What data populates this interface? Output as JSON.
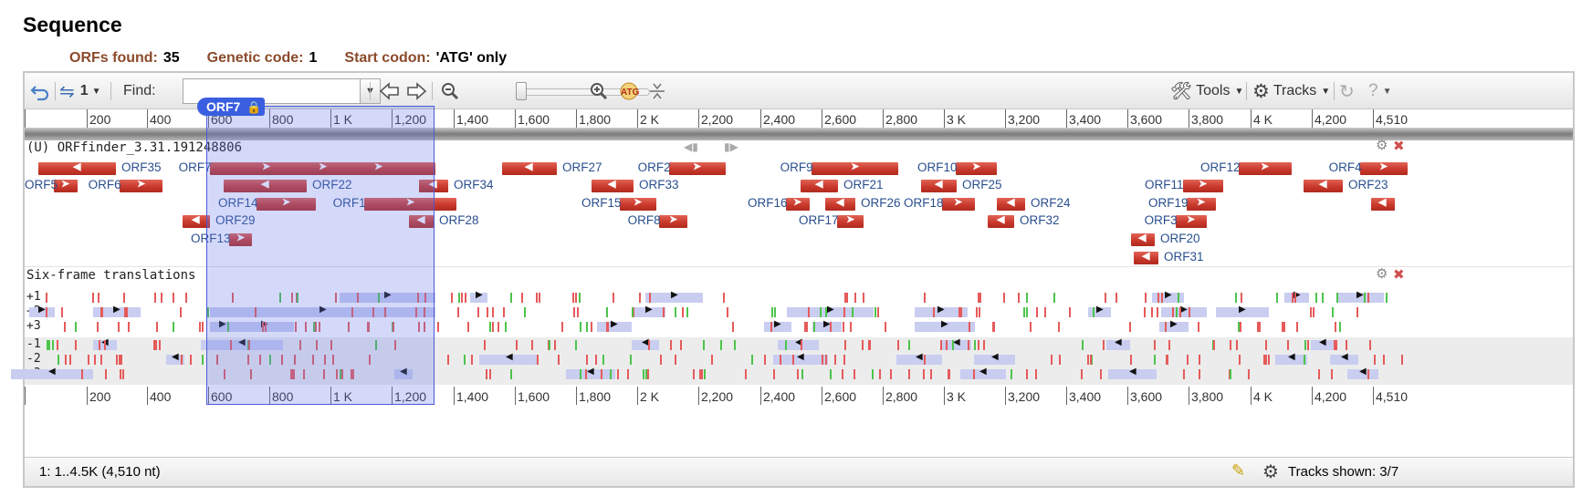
{
  "page": {
    "title": "Sequence"
  },
  "summary": {
    "orfs_label": "ORFs found:",
    "orfs_value": "35",
    "code_label": "Genetic code:",
    "code_value": "1",
    "start_label": "Start codon:",
    "start_value": "'ATG' only"
  },
  "toolbar": {
    "frames_value": "1",
    "find_label": "Find:",
    "find_value": "",
    "tools_label": "Tools",
    "tracks_label": "Tracks"
  },
  "ruler": {
    "labels": [
      "200",
      "400",
      "600",
      "800",
      "1 K",
      "1,200",
      "1,400",
      "1,600",
      "1,800",
      "2 K",
      "2,200",
      "2,400",
      "2,600",
      "2,800",
      "3 K",
      "3,200",
      "3,400",
      "3,600",
      "3,800",
      "4 K",
      "4,200",
      "4,510"
    ]
  },
  "selection": {
    "label": "ORF7"
  },
  "orf_track": {
    "title": "(U) ORFfinder_3.31.191248806"
  },
  "translation_track": {
    "title": "Six-frame translations",
    "frames": [
      "+1",
      "+2",
      "+3",
      "-1",
      "-2",
      "-3"
    ]
  },
  "orfs": [
    {
      "name": "ORF35",
      "row": 0,
      "start": 40,
      "end": 125,
      "dir": "-",
      "label_side": "right"
    },
    {
      "name": "ORF7",
      "row": 0,
      "start": 228,
      "end": 475,
      "dir": "+",
      "label_side": "left"
    },
    {
      "name": "ORF27",
      "row": 0,
      "start": 548,
      "end": 608,
      "dir": "-",
      "label_side": "right"
    },
    {
      "name": "ORF2",
      "row": 0,
      "start": 731,
      "end": 793,
      "dir": "+",
      "label_side": "left"
    },
    {
      "name": "ORF9",
      "row": 0,
      "start": 887,
      "end": 982,
      "dir": "+",
      "label_side": "left"
    },
    {
      "name": "ORF10",
      "row": 0,
      "start": 1045,
      "end": 1090,
      "dir": "+",
      "label_side": "left"
    },
    {
      "name": "ORF12",
      "row": 0,
      "start": 1355,
      "end": 1413,
      "dir": "+",
      "label_side": "left"
    },
    {
      "name": "ORF4",
      "row": 0,
      "start": 1488,
      "end": 1540,
      "dir": "+",
      "label_side": "left"
    },
    {
      "name": "ORF5",
      "row": 1,
      "start": 57,
      "end": 83,
      "dir": "+",
      "label_side": "left"
    },
    {
      "name": "ORF6",
      "row": 1,
      "start": 129,
      "end": 176,
      "dir": "+",
      "label_side": "left"
    },
    {
      "name": "ORF22",
      "row": 1,
      "start": 243,
      "end": 334,
      "dir": "-",
      "label_side": "right"
    },
    {
      "name": "ORF34",
      "row": 1,
      "start": 457,
      "end": 489,
      "dir": "-",
      "label_side": "right"
    },
    {
      "name": "ORF33",
      "row": 1,
      "start": 646,
      "end": 692,
      "dir": "-",
      "label_side": "right"
    },
    {
      "name": "ORF21",
      "row": 1,
      "start": 875,
      "end": 916,
      "dir": "-",
      "label_side": "right"
    },
    {
      "name": "ORF25",
      "row": 1,
      "start": 1007,
      "end": 1046,
      "dir": "-",
      "label_side": "right"
    },
    {
      "name": "ORF11",
      "row": 1,
      "start": 1294,
      "end": 1338,
      "dir": "+",
      "label_side": "left"
    },
    {
      "name": "ORF23",
      "row": 1,
      "start": 1426,
      "end": 1469,
      "dir": "-",
      "label_side": "right"
    },
    {
      "name": "ORF14",
      "row": 2,
      "start": 279,
      "end": 344,
      "dir": "+",
      "label_side": "left"
    },
    {
      "name": "ORF1",
      "row": 2,
      "start": 397,
      "end": 498,
      "dir": "+",
      "label_side": "left"
    },
    {
      "name": "ORF15",
      "row": 2,
      "start": 677,
      "end": 717,
      "dir": "+",
      "label_side": "left"
    },
    {
      "name": "ORF16",
      "row": 2,
      "start": 859,
      "end": 885,
      "dir": "+",
      "label_side": "left"
    },
    {
      "name": "ORF26",
      "row": 2,
      "start": 902,
      "end": 935,
      "dir": "-",
      "label_side": "right"
    },
    {
      "name": "ORF18",
      "row": 2,
      "start": 1030,
      "end": 1066,
      "dir": "+",
      "label_side": "left"
    },
    {
      "name": "ORF24",
      "row": 2,
      "start": 1090,
      "end": 1121,
      "dir": "-",
      "label_side": "right"
    },
    {
      "name": "ORF19",
      "row": 2,
      "start": 1298,
      "end": 1330,
      "dir": "+",
      "label_side": "left"
    },
    {
      "name": "",
      "row": 2,
      "start": 1500,
      "end": 1526,
      "dir": "-",
      "label_side": "right"
    },
    {
      "name": "ORF29",
      "row": 3,
      "start": 198,
      "end": 228,
      "dir": "-",
      "label_side": "right"
    },
    {
      "name": "ORF28",
      "row": 3,
      "start": 446,
      "end": 473,
      "dir": "-",
      "label_side": "right"
    },
    {
      "name": "ORF8",
      "row": 3,
      "start": 720,
      "end": 751,
      "dir": "+",
      "label_side": "left"
    },
    {
      "name": "ORF17",
      "row": 3,
      "start": 915,
      "end": 944,
      "dir": "+",
      "label_side": "left"
    },
    {
      "name": "ORF32",
      "row": 3,
      "start": 1080,
      "end": 1109,
      "dir": "-",
      "label_side": "right"
    },
    {
      "name": "ORF3",
      "row": 3,
      "start": 1286,
      "end": 1320,
      "dir": "+",
      "label_side": "left"
    },
    {
      "name": "ORF13",
      "row": 4,
      "start": 249,
      "end": 274,
      "dir": "+",
      "label_side": "left"
    },
    {
      "name": "ORF20",
      "row": 4,
      "start": 1237,
      "end": 1263,
      "dir": "-",
      "label_side": "right"
    },
    {
      "name": "ORF31",
      "row": 5,
      "start": 1240,
      "end": 1267,
      "dir": "-",
      "label_side": "right"
    }
  ],
  "statusbar": {
    "range": "1: 1..4.5K (4,510 nt)",
    "tracks_shown": "Tracks shown: 3/7"
  },
  "colors": {
    "orf": "#c9392c",
    "label": "#2a4f8f",
    "stop": "#e65a5a",
    "start": "#4cc44c",
    "selection": "#4a5ad8"
  }
}
